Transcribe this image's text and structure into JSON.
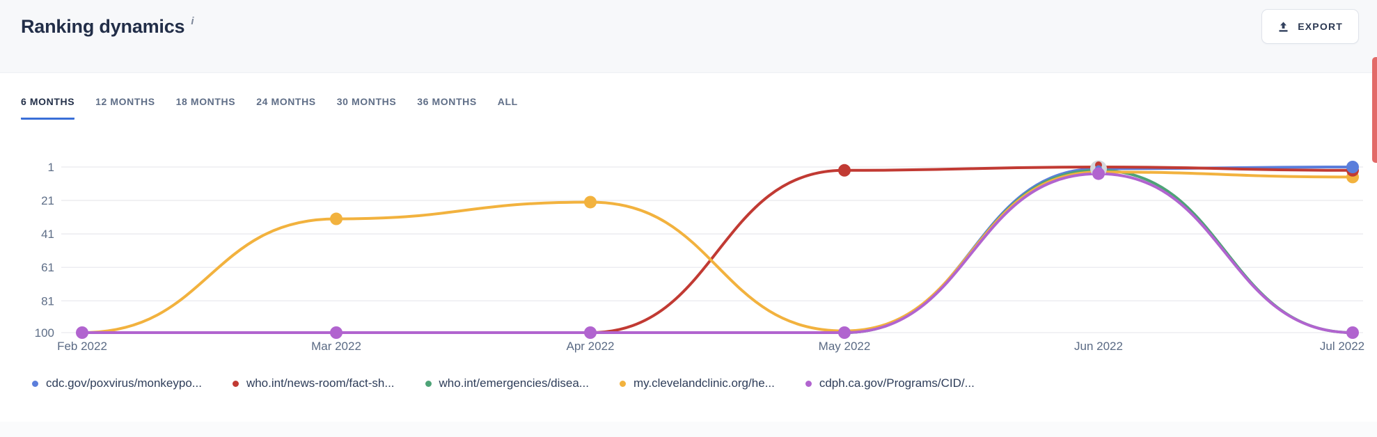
{
  "header": {
    "title": "Ranking dynamics",
    "info_icon": "i",
    "export_label": "EXPORT"
  },
  "tabs": [
    {
      "label": "6 MONTHS",
      "active": true
    },
    {
      "label": "12 MONTHS",
      "active": false
    },
    {
      "label": "18 MONTHS",
      "active": false
    },
    {
      "label": "24 MONTHS",
      "active": false
    },
    {
      "label": "30 MONTHS",
      "active": false
    },
    {
      "label": "36 MONTHS",
      "active": false
    },
    {
      "label": "ALL",
      "active": false
    }
  ],
  "chart_data": {
    "type": "line",
    "x": [
      "Feb 2022",
      "Mar 2022",
      "Apr 2022",
      "May 2022",
      "Jun 2022",
      "Jul 2022"
    ],
    "y_ticks": [
      1,
      21,
      41,
      61,
      81,
      100
    ],
    "y_axis_inverted": true,
    "ylim": [
      1,
      100
    ],
    "grid": true,
    "legend_position": "bottom",
    "series": [
      {
        "name": "cdc.gov/poxvirus/monkeypo...",
        "color": "#5b7edb",
        "values": [
          100,
          100,
          100,
          100,
          2,
          1
        ],
        "markers": [
          5
        ]
      },
      {
        "name": "who.int/news-room/fact-sh...",
        "color": "#c13a33",
        "values": [
          100,
          100,
          100,
          3,
          1,
          3
        ],
        "markers": [
          3,
          5
        ]
      },
      {
        "name": "who.int/emergencies/disea...",
        "color": "#4ea377",
        "values": [
          100,
          100,
          100,
          100,
          3,
          100
        ],
        "markers": []
      },
      {
        "name": "my.clevelandclinic.org/he...",
        "color": "#f2b23e",
        "values": [
          100,
          32,
          22,
          99,
          4,
          7
        ],
        "markers": [
          1,
          2,
          5
        ]
      },
      {
        "name": "cdph.ca.gov/Programs/CID/...",
        "color": "#b164cf",
        "values": [
          100,
          100,
          100,
          100,
          5,
          100
        ],
        "markers": [
          0,
          1,
          2,
          3,
          4,
          5
        ]
      }
    ],
    "overlap_marker": {
      "month_index": 4,
      "halo_color": "#d6d8dd",
      "stack_colors": [
        "#c13a33",
        "#5b7edb",
        "#4ea377"
      ]
    }
  },
  "colors": {
    "grid": "#ededf1",
    "tick_text": "#5e6e87",
    "month_text": "#5a6a84",
    "tab_active_underline": "#3a6fd8",
    "red_strip": "#e26a68"
  }
}
